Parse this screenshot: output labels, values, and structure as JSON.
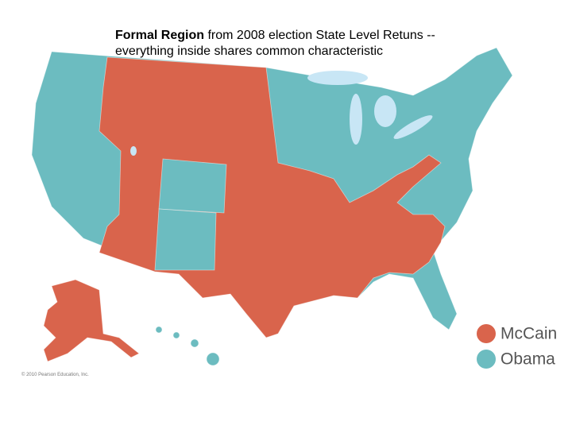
{
  "caption": {
    "bold": "Formal Region",
    "text": "from 2008 election State Level Retuns -- everything inside shares common characteristic"
  },
  "legend": [
    {
      "label": "McCain",
      "color": "#d9644c"
    },
    {
      "label": "Obama",
      "color": "#6cbcc0"
    }
  ],
  "copyright": "© 2010 Pearson Education, Inc."
}
